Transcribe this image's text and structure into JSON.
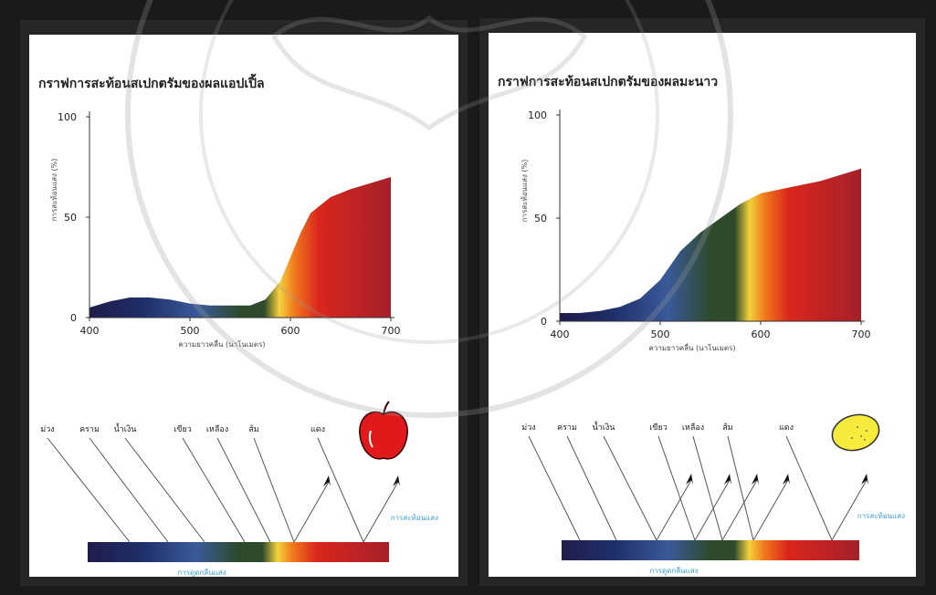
{
  "colors": {
    "violet": "#1f1c4a",
    "indigo": "#1f2f6a",
    "blue": "#3a5a9a",
    "green": "#2e4a2a",
    "yellow": "#f4d23c",
    "orange": "#f07a1c",
    "red": "#d9261d",
    "darkred": "#a5202a",
    "apple": "#e01a1a",
    "lemon": "#f6ea3c",
    "annotation": "#3aa0d8"
  },
  "chart_data": [
    {
      "type": "area",
      "title": "กราฟการสะท้อนสเปกตรัมของผลแอปเปิ้ล",
      "xlabel": "ความยาวคลื่น (นาโนเมตร)",
      "ylabel": "การสะท้อนแสง (%)",
      "xlim": [
        400,
        700
      ],
      "ylim": [
        0,
        100
      ],
      "xticks": [
        "400",
        "500",
        "600",
        "700"
      ],
      "yticks": [
        "0",
        "50",
        "100"
      ],
      "x": [
        400,
        420,
        440,
        460,
        480,
        500,
        520,
        540,
        560,
        575,
        590,
        600,
        610,
        620,
        640,
        660,
        680,
        700
      ],
      "y": [
        5,
        8,
        10,
        10,
        9,
        7,
        6,
        6,
        6,
        9,
        18,
        30,
        42,
        52,
        60,
        64,
        67,
        70
      ]
    },
    {
      "type": "area",
      "title": "กราฟการสะท้อนสเปกตรัมของผลมะนาว",
      "xlabel": "ความยาวคลื่น (นาโนเมตร)",
      "ylabel": "การสะท้อนแสง (%)",
      "xlim": [
        400,
        700
      ],
      "ylim": [
        0,
        100
      ],
      "xticks": [
        "400",
        "500",
        "600",
        "700"
      ],
      "yticks": [
        "0",
        "50",
        "100"
      ],
      "x": [
        400,
        420,
        440,
        460,
        480,
        500,
        520,
        540,
        560,
        580,
        600,
        620,
        640,
        660,
        680,
        700
      ],
      "y": [
        4,
        4,
        5,
        7,
        11,
        20,
        34,
        43,
        50,
        57,
        62,
        64,
        66,
        68,
        71,
        74
      ]
    }
  ],
  "diagrams": [
    {
      "colors_labels": [
        "ม่วง",
        "คราม",
        "น้ำเงิน",
        "เขียว",
        "เหลือง",
        "ส้ม",
        "แดง"
      ],
      "reflect_label": "การสะท้อนแสง",
      "absorb_label": "การดูดกลืนแสง",
      "fruit": "apple-icon",
      "reflected": [
        false,
        false,
        false,
        false,
        false,
        true,
        true
      ]
    },
    {
      "colors_labels": [
        "ม่วง",
        "คราม",
        "น้ำเงิน",
        "เขียว",
        "เหลือง",
        "ส้ม",
        "แดง"
      ],
      "reflect_label": "การสะท้อนแสง",
      "absorb_label": "การดูดกลืนแสง",
      "fruit": "lemon-icon",
      "reflected": [
        false,
        false,
        true,
        true,
        true,
        true,
        true
      ]
    }
  ]
}
